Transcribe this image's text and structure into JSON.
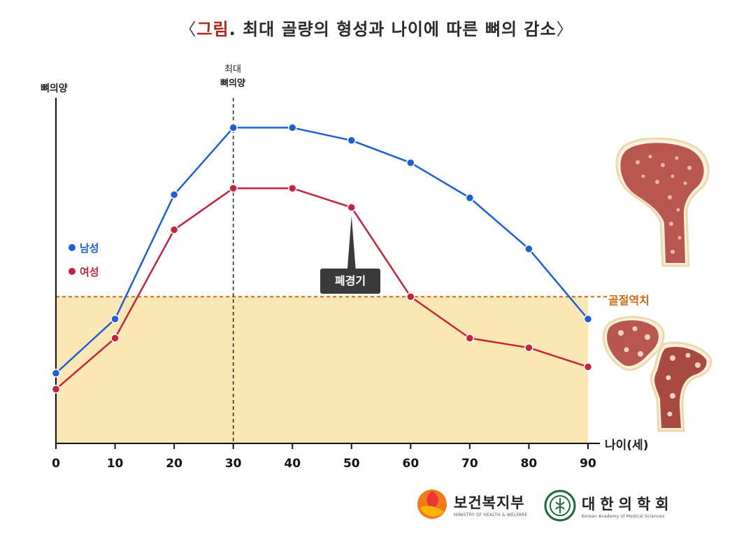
{
  "title": {
    "open": "〈",
    "prefix": "그림",
    "text": ". 최대 골량의 형성과 나이에 따른 뼈의 감소",
    "close": "〉"
  },
  "chart_data": {
    "type": "line",
    "title": "〈그림. 최대 골량의 형성과 나이에 따른 뼈의 감소〉",
    "xlabel": "나이(세)",
    "ylabel": "뼈의양",
    "x": [
      0,
      10,
      20,
      30,
      40,
      50,
      60,
      70,
      80,
      90
    ],
    "xlim": [
      0,
      90
    ],
    "ylim": [
      0,
      100
    ],
    "y_ticks_shown": false,
    "grid": false,
    "legend_position": "left",
    "series": [
      {
        "name": "남성",
        "color": "#1f5fd6",
        "values": [
          22,
          39,
          78,
          99,
          99,
          95,
          88,
          77,
          61,
          39
        ]
      },
      {
        "name": "여성",
        "color": "#c8223c",
        "values": [
          17,
          33,
          67,
          80,
          80,
          74,
          46,
          33,
          30,
          24
        ]
      }
    ],
    "threshold": {
      "label": "골절역치",
      "value": 46,
      "color": "#d2690e",
      "fill": "#fbe7b4"
    },
    "peak_marker": {
      "x": 30,
      "label_line1": "최대",
      "label_line2": "뼈의양"
    },
    "annotation": {
      "text": "폐경기",
      "x": 50,
      "series": "여성"
    }
  },
  "logos": {
    "ministry": {
      "name": "보건복지부",
      "sub": "MINISTRY OF HEALTH & WELFARE"
    },
    "academy": {
      "name": "대한의학회",
      "sub": "Korean Academy of Medical Sciences"
    }
  }
}
